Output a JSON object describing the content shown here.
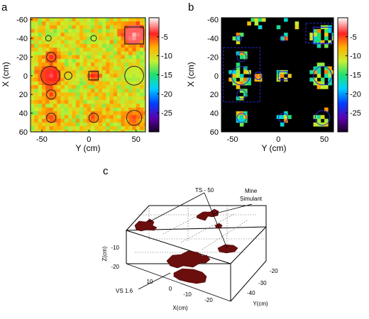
{
  "chart_data": [
    {
      "panel": "a",
      "type": "heatmap",
      "xlabel": "Y (cm)",
      "ylabel": "X (cm)",
      "xlim": [
        -62,
        60
      ],
      "ylim": [
        60,
        -62
      ],
      "xticks": [
        "-50",
        "0",
        "50"
      ],
      "xtick_values": [
        -50,
        0,
        50
      ],
      "yticks": [
        "-60",
        "-40",
        "-20",
        "0",
        "20",
        "40",
        "60"
      ],
      "ytick_values": [
        -60,
        -40,
        -20,
        0,
        20,
        40,
        60
      ],
      "colorbar": {
        "ticks": [
          "-5",
          "-10",
          "-15",
          "-20",
          "-25"
        ],
        "tick_values": [
          -5,
          -10,
          -15,
          -20,
          -25
        ],
        "range": [
          -30,
          0
        ]
      },
      "background_level": -10,
      "targets": [
        {
          "y": -43,
          "x": -40,
          "r": 3,
          "level": -12,
          "shape": "circle"
        },
        {
          "y": 5,
          "x": -40,
          "r": 3,
          "level": -12,
          "shape": "circle"
        },
        {
          "y": -40,
          "x": -20,
          "r": 5,
          "level": -4,
          "shape": "circle"
        },
        {
          "y": -41,
          "x": 0,
          "r": 10,
          "level": -3,
          "shape": "circle"
        },
        {
          "y": -22,
          "x": 0,
          "r": 4,
          "level": -10,
          "shape": "circle"
        },
        {
          "y": 5,
          "x": 0,
          "r": 5,
          "level": -4,
          "shape": "square"
        },
        {
          "y": 48,
          "x": 0,
          "r": 10,
          "level": -12,
          "shape": "circle"
        },
        {
          "y": -40,
          "x": 20,
          "r": 5,
          "level": -5,
          "shape": "circle"
        },
        {
          "y": -40,
          "x": 45,
          "r": 5,
          "level": -5,
          "shape": "circle"
        },
        {
          "y": 5,
          "x": 45,
          "r": 5,
          "level": -5,
          "shape": "circle"
        },
        {
          "y": 48,
          "x": 45,
          "r": 8,
          "level": -5,
          "shape": "circle"
        },
        {
          "y": 48,
          "x": -43,
          "r": 10,
          "level": -1,
          "shape": "square"
        }
      ]
    },
    {
      "panel": "b",
      "type": "heatmap",
      "xlabel": "Y (cm)",
      "ylabel": "X (cm)",
      "xlim": [
        -62,
        60
      ],
      "ylim": [
        60,
        -62
      ],
      "xticks": [
        "-50",
        "0",
        "50"
      ],
      "xtick_values": [
        -50,
        0,
        50
      ],
      "yticks": [
        "-60",
        "-40",
        "-20",
        "0",
        "20",
        "40",
        "60"
      ],
      "ytick_values": [
        -60,
        -40,
        -20,
        0,
        20,
        40,
        60
      ],
      "colorbar": {
        "ticks": [
          "-5",
          "-10",
          "-15",
          "-20",
          "-25"
        ],
        "tick_values": [
          -5,
          -10,
          -15,
          -20,
          -25
        ],
        "range": [
          -30,
          0
        ]
      },
      "background_level": -30,
      "regions": [
        {
          "y0": -60,
          "y1": -20,
          "x0": -30,
          "x1": 28
        },
        {
          "y0": 30,
          "y1": 60,
          "x0": -56,
          "x1": -35
        }
      ]
    },
    {
      "panel": "c",
      "type": "scatter",
      "xlabel": "X(cm)",
      "ylabel": "Y(cm)",
      "zlabel": "Z(cm)",
      "xticks": [
        "10",
        "0",
        "-10",
        "-20"
      ],
      "yticks": [
        "-20",
        "-30",
        "-40"
      ],
      "zticks": [
        "-10",
        "-20"
      ],
      "annotations": [
        "TS - 50",
        "Mine Simulant",
        "VS 1.6"
      ]
    }
  ],
  "panels": {
    "a": {
      "label": "a"
    },
    "b": {
      "label": "b"
    },
    "c": {
      "label": "c"
    }
  },
  "colors": {
    "panel_c_blobs": "#6b0e0e",
    "target_outline_a": "#1f1f1f",
    "target_outline_b": "#2b2bd6"
  }
}
